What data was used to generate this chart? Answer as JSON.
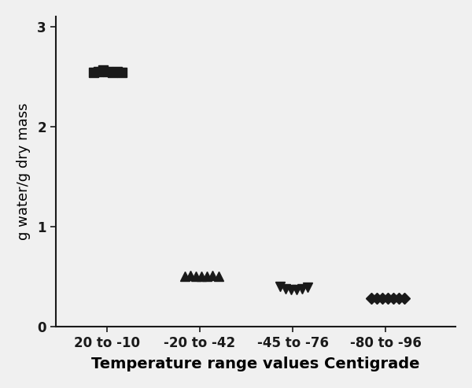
{
  "title": "",
  "xlabel": "Temperature range values Centigrade",
  "ylabel": "g water/g dry mass",
  "ylim": [
    0,
    3.1
  ],
  "yticks": [
    0,
    1,
    2,
    3
  ],
  "background_color": "#f0f0f0",
  "axes_facecolor": "#f0f0f0",
  "groups": [
    {
      "label": "20 to -10",
      "x_center": 1,
      "x_offsets": [
        -0.14,
        -0.09,
        -0.04,
        0.01,
        0.06,
        0.11,
        0.16
      ],
      "y_values": [
        2.54,
        2.55,
        2.56,
        2.55,
        2.54,
        2.55,
        2.54
      ],
      "marker": "s",
      "color": "#1a1a1a",
      "markersize": 8
    },
    {
      "label": "-20 to -42",
      "x_center": 2,
      "x_offsets": [
        -0.16,
        -0.1,
        -0.04,
        0.02,
        0.08,
        0.14,
        0.2
      ],
      "y_values": [
        0.5,
        0.51,
        0.5,
        0.5,
        0.5,
        0.51,
        0.5
      ],
      "marker": "^",
      "color": "#1a1a1a",
      "markersize": 9
    },
    {
      "label": "-45 to -76",
      "x_center": 3,
      "x_offsets": [
        -0.14,
        -0.08,
        -0.02,
        0.04,
        0.1,
        0.16
      ],
      "y_values": [
        0.4,
        0.38,
        0.37,
        0.37,
        0.38,
        0.39
      ],
      "marker": "v",
      "color": "#1a1a1a",
      "markersize": 9
    },
    {
      "label": "-80 to -96",
      "x_center": 4,
      "x_offsets": [
        -0.16,
        -0.1,
        -0.04,
        0.02,
        0.08,
        0.14,
        0.2
      ],
      "y_values": [
        0.28,
        0.28,
        0.28,
        0.28,
        0.28,
        0.28,
        0.28
      ],
      "marker": "D",
      "color": "#1a1a1a",
      "markersize": 7
    }
  ],
  "xtick_labels": [
    "20 to -10",
    "-20 to -42",
    "-45 to -76",
    "-80 to -96"
  ],
  "xtick_positions": [
    1,
    2,
    3,
    4
  ],
  "xlabel_fontsize": 14,
  "ylabel_fontsize": 13,
  "tick_fontsize": 12
}
